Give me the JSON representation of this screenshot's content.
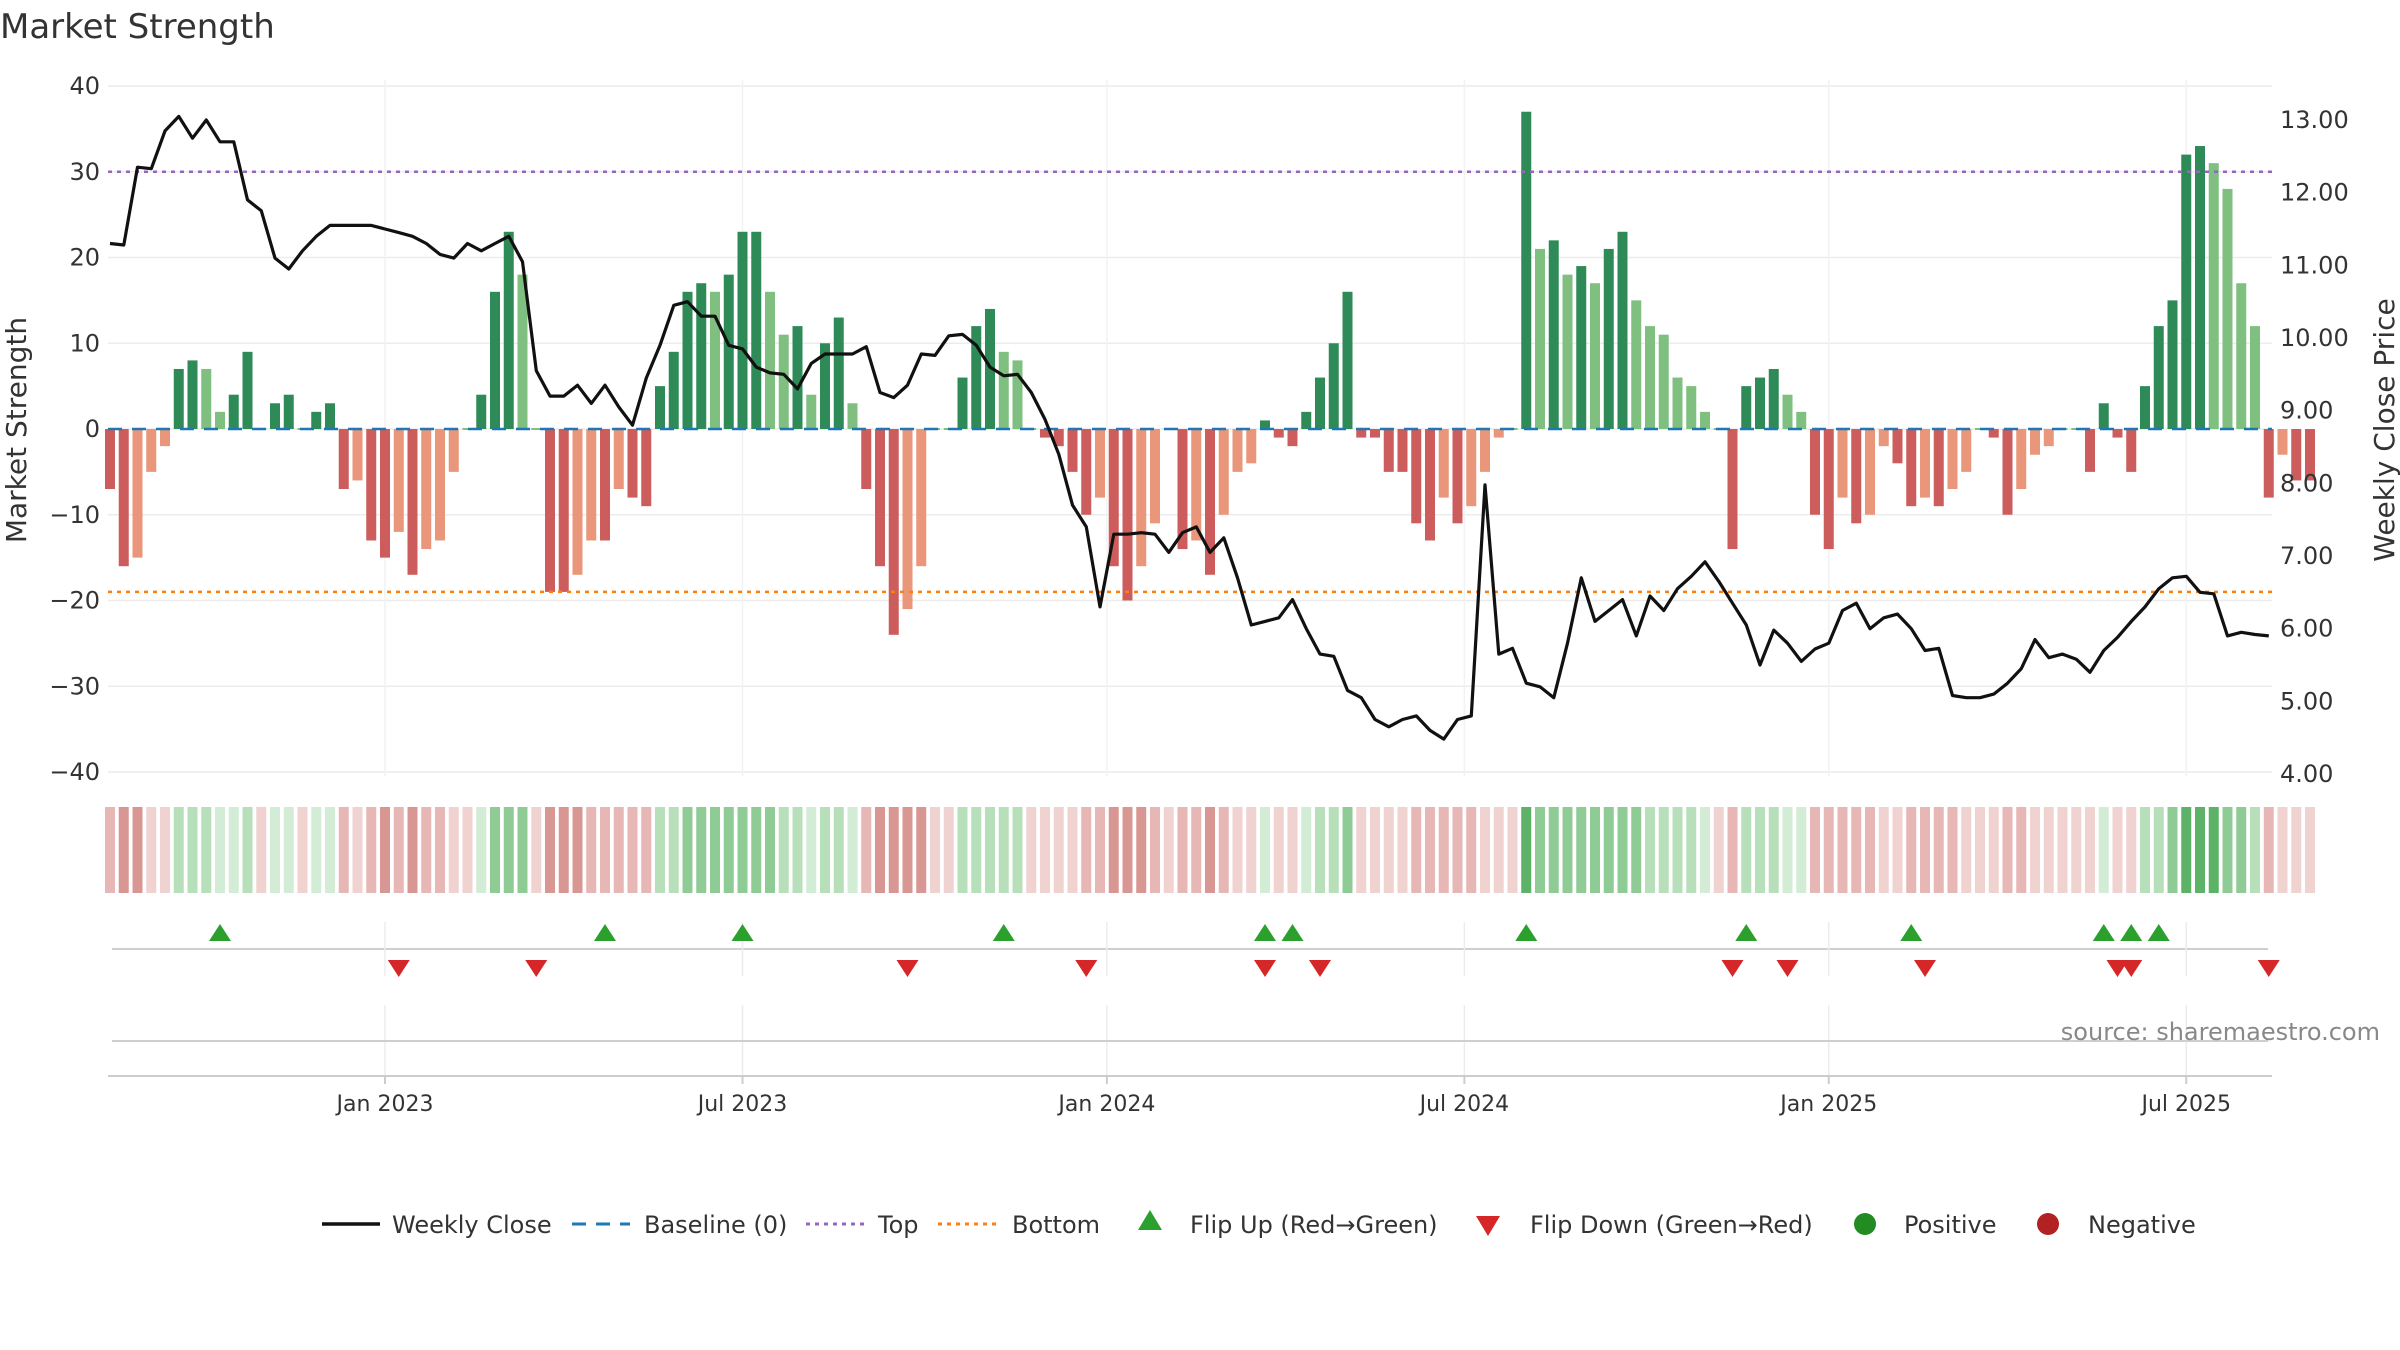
{
  "chart_data": {
    "type": "bar+line",
    "title": "Market Strength",
    "ylabel": "Market Strength",
    "y2label": "Weekly Close Price",
    "ylim": [
      -40,
      40
    ],
    "yticks": [
      40,
      30,
      20,
      10,
      0,
      -10,
      -20,
      -30,
      -40
    ],
    "yticklabels": [
      "40",
      "30",
      "20",
      "10",
      "0",
      "−10",
      "−20",
      "−30",
      "−40"
    ],
    "y2lim": [
      4.0,
      13.0
    ],
    "y2ticks": [
      13,
      12,
      11,
      10,
      9,
      8,
      7,
      6,
      5,
      4
    ],
    "y2ticklabels": [
      "13.00",
      "12.00",
      "11.00",
      "10.00",
      "9.00",
      "8.00",
      "7.00",
      "6.00",
      "5.00",
      "4.00"
    ],
    "top_line": 30,
    "bottom_line": -19,
    "x_start": "2022-08-15",
    "weeks": 158,
    "xticks": [
      {
        "label": "Jan 2023",
        "week": 20
      },
      {
        "label": "Jul 2023",
        "week": 46
      },
      {
        "label": "Jan 2024",
        "week": 72.5
      },
      {
        "label": "Jul 2024",
        "week": 98.5
      },
      {
        "label": "Jan 2025",
        "week": 125
      },
      {
        "label": "Jul 2025",
        "week": 151
      }
    ],
    "strength": [
      -7,
      -16,
      -15,
      -5,
      -2,
      7,
      8,
      7,
      2,
      4,
      9,
      0,
      3,
      4,
      0,
      2,
      3,
      -7,
      -6,
      -13,
      -15,
      -12,
      -17,
      -14,
      -13,
      -5,
      0,
      4,
      16,
      23,
      18,
      0,
      -19,
      -19,
      -17,
      -13,
      -13,
      -7,
      -8,
      -9,
      5,
      9,
      16,
      17,
      16,
      18,
      23,
      23,
      16,
      11,
      12,
      4,
      10,
      13,
      3,
      -7,
      -16,
      -24,
      -21,
      -16,
      0,
      0,
      6,
      12,
      14,
      9,
      8,
      0,
      -1,
      -2,
      -5,
      -10,
      -8,
      -16,
      -20,
      -16,
      -11,
      0,
      -14,
      -13,
      -17,
      -10,
      -5,
      -4,
      1,
      -1,
      -2,
      2,
      6,
      10,
      16,
      -1,
      -1,
      -5,
      -5,
      -11,
      -13,
      -8,
      -11,
      -9,
      -5,
      -1,
      0,
      37,
      21,
      22,
      18,
      19,
      17,
      21,
      23,
      15,
      12,
      11,
      6,
      5,
      2,
      0,
      -14,
      5,
      6,
      7,
      4,
      2,
      -10,
      -14,
      -8,
      -11,
      -10,
      -2,
      -4,
      -9,
      -8,
      -9,
      -7,
      -5,
      0,
      -1,
      -10,
      -7,
      -3,
      -2,
      0,
      0,
      -5,
      3,
      -1,
      -5,
      5,
      12,
      15,
      32,
      33,
      31,
      28,
      17,
      12,
      -8,
      -3,
      -6,
      -6
    ],
    "close": [
      11.3,
      11.28,
      12.35,
      12.33,
      12.85,
      13.05,
      12.75,
      13.0,
      12.7,
      12.7,
      11.9,
      11.75,
      11.1,
      10.95,
      11.2,
      11.4,
      11.55,
      11.55,
      11.55,
      11.55,
      11.5,
      11.45,
      11.4,
      11.3,
      11.15,
      11.1,
      11.3,
      11.2,
      11.3,
      11.4,
      11.05,
      9.55,
      9.2,
      9.2,
      9.35,
      9.1,
      9.35,
      9.05,
      8.8,
      9.45,
      9.9,
      10.45,
      10.5,
      10.3,
      10.3,
      9.9,
      9.85,
      9.6,
      9.52,
      9.5,
      9.3,
      9.65,
      9.78,
      9.78,
      9.78,
      9.88,
      9.25,
      9.18,
      9.35,
      9.78,
      9.76,
      10.03,
      10.05,
      9.9,
      9.6,
      9.48,
      9.5,
      9.25,
      8.88,
      8.4,
      7.7,
      7.4,
      6.3,
      7.3,
      7.3,
      7.32,
      7.3,
      7.05,
      7.32,
      7.4,
      7.05,
      7.25,
      6.7,
      6.05,
      6.1,
      6.15,
      6.4,
      6.0,
      5.65,
      5.62,
      5.15,
      5.05,
      4.75,
      4.65,
      4.75,
      4.8,
      4.6,
      4.48,
      4.75,
      4.8,
      7.98,
      5.65,
      5.73,
      5.25,
      5.2,
      5.05,
      5.8,
      6.7,
      6.1,
      6.25,
      6.4,
      5.9,
      6.45,
      6.25,
      6.55,
      6.72,
      6.92,
      6.65,
      6.35,
      6.05,
      5.5,
      5.98,
      5.8,
      5.55,
      5.72,
      5.8,
      6.25,
      6.35,
      6.0,
      6.15,
      6.2,
      6.0,
      5.7,
      5.73,
      5.08,
      5.05,
      5.05,
      5.1,
      5.25,
      5.45,
      5.85,
      5.6,
      5.65,
      5.58,
      5.4,
      5.7,
      5.88,
      6.1,
      6.3,
      6.55,
      6.7,
      6.72,
      6.5,
      6.48,
      5.9,
      5.95,
      5.92,
      5.9
    ],
    "bands": {
      "positive_colors": [
        "#d3ecd5",
        "#b7dfba",
        "#8fcc95",
        "#5cb368"
      ],
      "negative_colors": [
        "#f0d2d0",
        "#e6b7b4",
        "#d99794"
      ]
    },
    "flip_up": [
      "2022-10-10",
      "2023-04-24",
      "2023-07-03",
      "2023-11-13",
      "2024-03-25",
      "2024-04-08",
      "2024-08-05",
      "2024-11-25",
      "2025-02-17",
      "2025-05-26",
      "2025-06-09",
      "2025-06-23"
    ],
    "flip_down": [
      "2023-01-09",
      "2023-03-20",
      "2023-09-25",
      "2023-12-25",
      "2024-03-25",
      "2024-04-22",
      "2024-11-18",
      "2024-12-16",
      "2025-02-24",
      "2025-06-02",
      "2025-06-09",
      "2025-08-18"
    ],
    "colors": {
      "bar_pos_strong": "#2e8b57",
      "bar_pos_weak": "#7fbf7f",
      "bar_neg_strong": "#cd5c5c",
      "bar_neg_weak": "#e9967a",
      "close_line": "#111111",
      "baseline": "#1f77b4",
      "top": "#9467bd",
      "bottom": "#ff7f0e",
      "flip_up": "#2ca02c",
      "flip_down": "#d62728",
      "positive": "#228b22",
      "negative": "#b22222"
    },
    "legend": [
      {
        "key": "close",
        "label": "Weekly Close"
      },
      {
        "key": "baseline",
        "label": "Baseline (0)"
      },
      {
        "key": "top",
        "label": "Top"
      },
      {
        "key": "bottom",
        "label": "Bottom"
      },
      {
        "key": "flip_up",
        "label": "Flip Up (Red→Green)"
      },
      {
        "key": "flip_down",
        "label": "Flip Down (Green→Red)"
      },
      {
        "key": "positive",
        "label": "Positive"
      },
      {
        "key": "negative",
        "label": "Negative"
      }
    ],
    "source": "source: sharemaestro.com"
  }
}
